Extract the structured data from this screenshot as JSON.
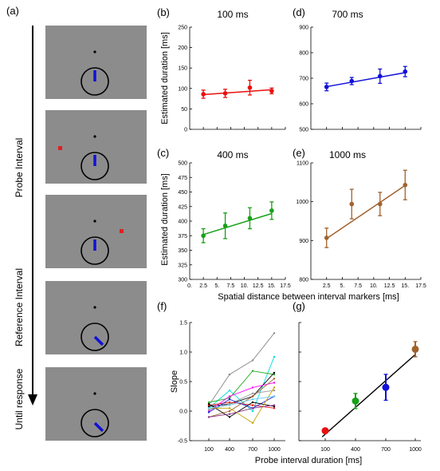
{
  "panel_a": {
    "label": "(a)",
    "phase_labels": [
      "Probe Interval",
      "Reference Interval",
      "Until response"
    ],
    "colors": {
      "screen": "#8c8c8c",
      "hand": "#1010d8",
      "marker": "#e02020"
    },
    "screens": [
      {
        "hand_angle_deg": 0,
        "marker": null
      },
      {
        "hand_angle_deg": 0,
        "marker": "left"
      },
      {
        "hand_angle_deg": 0,
        "marker": "right"
      },
      {
        "hand_angle_deg": 135,
        "marker": null
      },
      {
        "hand_angle_deg": 135,
        "marker": null
      }
    ]
  },
  "panels": {
    "b": {
      "label": "(b)",
      "title": "100 ms"
    },
    "d": {
      "label": "(d)",
      "title": "700 ms"
    },
    "c": {
      "label": "(c)",
      "title": "400 ms"
    },
    "e": {
      "label": "(e)",
      "title": "1000 ms"
    },
    "f": {
      "label": "(f)"
    },
    "g": {
      "label": "(g)"
    }
  },
  "labels": {
    "ylabel_upper": "Estimated duration [ms]",
    "ylabel_lower": "Estimated duration [ms]",
    "xlabel_middle": "Spatial distance between interval markers [ms]",
    "ylabel_slope": "Slope",
    "xlabel_bottom": "Probe interval duration [ms]"
  },
  "chart_data": [
    {
      "id": "b",
      "type": "line",
      "title": "100 ms",
      "color": "#e81010",
      "ylabel": "Estimated duration [ms]",
      "x": [
        2.5,
        6.5,
        11,
        15
      ],
      "y": [
        86,
        88,
        102,
        94
      ],
      "yerr": [
        10,
        10,
        18,
        7
      ],
      "fit": [
        [
          2.5,
          85
        ],
        [
          15,
          97
        ]
      ],
      "xlim": [
        0,
        17.5
      ],
      "ylim": [
        0,
        250
      ],
      "yticks": [
        "0",
        "50",
        "100",
        "150",
        "200",
        "250"
      ],
      "xticks": []
    },
    {
      "id": "d",
      "type": "line",
      "title": "700 ms",
      "color": "#1010d8",
      "x": [
        2.5,
        6.5,
        11,
        15
      ],
      "y": [
        666,
        689,
        708,
        726
      ],
      "yerr": [
        15,
        14,
        28,
        20
      ],
      "fit": [
        [
          2.5,
          667
        ],
        [
          15,
          722
        ]
      ],
      "xlim": [
        0,
        17.5
      ],
      "ylim": [
        500,
        900
      ],
      "yticks": [
        "500",
        "600",
        "700",
        "800",
        "900"
      ],
      "xticks": []
    },
    {
      "id": "c",
      "type": "line",
      "title": "400 ms",
      "color": "#18a018",
      "ylabel": "Estimated duration [ms]",
      "xlabel": "Spatial distance between interval markers [ms]",
      "x": [
        2.5,
        6.5,
        11,
        15
      ],
      "y": [
        375,
        392,
        405,
        418
      ],
      "yerr": [
        12,
        22,
        18,
        15
      ],
      "fit": [
        [
          2.5,
          377
        ],
        [
          15,
          413
        ]
      ],
      "xlim": [
        0,
        17.5
      ],
      "ylim": [
        300,
        500
      ],
      "yticks": [
        "300",
        "325",
        "350",
        "375",
        "400",
        "425",
        "450",
        "475",
        "500"
      ],
      "xticks": [
        "0.",
        "2.5",
        "5.",
        "7.5",
        "10.",
        "12.5",
        "15.",
        "17.5"
      ]
    },
    {
      "id": "e",
      "type": "line",
      "title": "1000 ms",
      "color": "#a0622d",
      "x": [
        2.5,
        6.5,
        11,
        15
      ],
      "y": [
        907,
        994,
        994,
        1043
      ],
      "yerr": [
        25,
        38,
        30,
        38
      ],
      "fit": [
        [
          2.5,
          905
        ],
        [
          15,
          1042
        ]
      ],
      "xlim": [
        0,
        17.5
      ],
      "ylim": [
        800,
        1100
      ],
      "yticks": [
        "800",
        "900",
        "1000",
        "1100"
      ],
      "xticks": [
        "2.5",
        "5.",
        "7.5",
        "10.",
        "12.5",
        "15.",
        "17.5"
      ]
    },
    {
      "id": "f",
      "type": "line",
      "ylabel": "Slope",
      "categories": [
        "100",
        "400",
        "700",
        "1000"
      ],
      "ylim": [
        -0.5,
        1.5
      ],
      "yticks": [
        "-0.5",
        "0.0",
        "0.5",
        "1.0",
        "1.5"
      ],
      "series": [
        {
          "color": "#888888",
          "values": [
            0.1,
            0.62,
            0.86,
            1.32
          ]
        },
        {
          "color": "#00dddd",
          "values": [
            0.05,
            0.35,
            0.0,
            0.92
          ]
        },
        {
          "color": "#22aa22",
          "values": [
            0.15,
            0.22,
            0.68,
            0.62
          ]
        },
        {
          "color": "#000000",
          "values": [
            0.08,
            0.12,
            0.25,
            0.65
          ]
        },
        {
          "color": "#ff00ff",
          "values": [
            0.0,
            0.25,
            0.4,
            0.48
          ]
        },
        {
          "color": "#a0622d",
          "values": [
            -0.1,
            0.0,
            0.25,
            0.55
          ]
        },
        {
          "color": "#999999",
          "values": [
            0.02,
            0.12,
            0.3,
            0.35
          ]
        },
        {
          "color": "#ee1111",
          "values": [
            0.1,
            0.15,
            0.1,
            0.05
          ]
        },
        {
          "color": "#2222dd",
          "values": [
            -0.02,
            0.2,
            0.05,
            0.25
          ]
        },
        {
          "color": "#000000",
          "values": [
            0.12,
            -0.1,
            0.15,
            0.08
          ]
        },
        {
          "color": "#c8a000",
          "values": [
            0.05,
            0.05,
            -0.2,
            0.4
          ]
        },
        {
          "color": "#66ccff",
          "values": [
            0.05,
            0.1,
            0.2,
            0.25
          ]
        },
        {
          "color": "#883388",
          "values": [
            -0.1,
            -0.05,
            0.05,
            0.1
          ]
        }
      ]
    },
    {
      "id": "g",
      "type": "scatter",
      "categories": [
        "100",
        "400",
        "700",
        "1000"
      ],
      "colors": [
        "#e81010",
        "#18a018",
        "#1010d8",
        "#a0622d"
      ],
      "values": [
        0.08,
        0.47,
        0.65,
        1.15
      ],
      "yerr": [
        0.03,
        0.1,
        0.17,
        0.1
      ],
      "fit": [
        [
          70,
          0.0
        ],
        [
          1000,
          1.08
        ]
      ],
      "ylim": [
        -0.05,
        1.5
      ]
    }
  ]
}
